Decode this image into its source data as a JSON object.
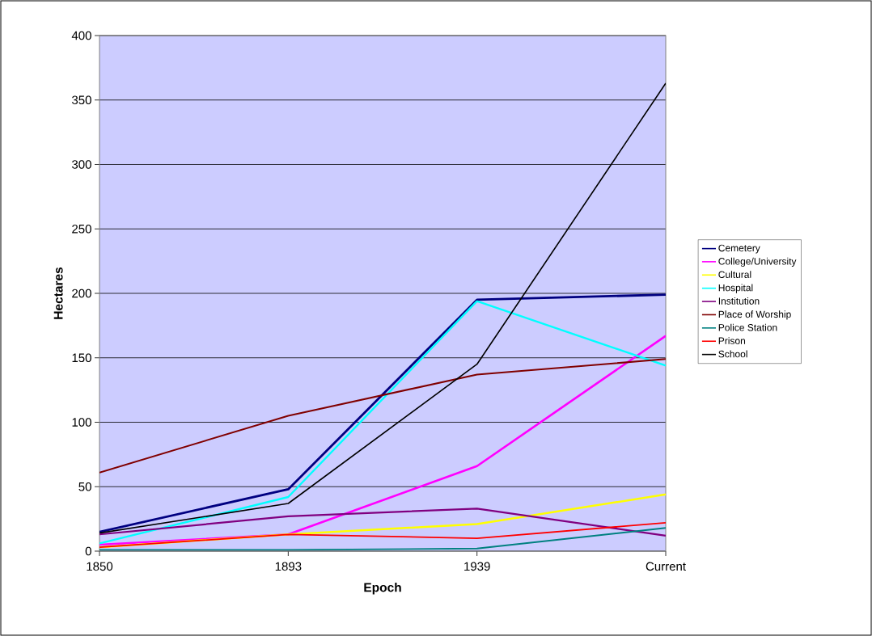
{
  "chart_data": {
    "type": "line",
    "xlabel": "Epoch",
    "ylabel": "Hectares",
    "categories": [
      "1850",
      "1893",
      "1939",
      "Current"
    ],
    "series": [
      {
        "name": "Cemetery",
        "color": "#000080",
        "values": [
          15,
          48,
          195,
          199
        ]
      },
      {
        "name": "College/University",
        "color": "#ff00ff",
        "values": [
          5,
          13,
          66,
          167
        ]
      },
      {
        "name": "Cultural",
        "color": "#ffff00",
        "values": [
          3,
          13,
          21,
          44
        ]
      },
      {
        "name": "Hospital",
        "color": "#00ffff",
        "values": [
          6,
          42,
          194,
          144
        ]
      },
      {
        "name": "Institution",
        "color": "#800080",
        "values": [
          13,
          27,
          33,
          12
        ]
      },
      {
        "name": "Place of Worship",
        "color": "#800000",
        "values": [
          61,
          105,
          137,
          149
        ]
      },
      {
        "name": "Police Station",
        "color": "#008080",
        "values": [
          1,
          1,
          2,
          18
        ]
      },
      {
        "name": "Prison",
        "color": "#ff0000",
        "values": [
          3,
          13,
          10,
          22
        ]
      },
      {
        "name": "School",
        "color": "#000000",
        "values": [
          14,
          37,
          145,
          363
        ]
      }
    ],
    "ylim": [
      0,
      400
    ],
    "yticks": [
      0,
      50,
      100,
      150,
      200,
      250,
      300,
      350,
      400
    ],
    "grid": "y",
    "legend": "right",
    "marker": "none",
    "line_style": "solid"
  }
}
